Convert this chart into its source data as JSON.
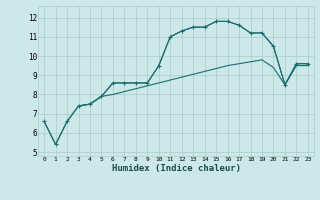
{
  "xlabel": "Humidex (Indice chaleur)",
  "background_color": "#cce8e8",
  "grid_color": "#aacccc",
  "line_color": "#1a6e6e",
  "xlim": [
    -0.5,
    23.5
  ],
  "ylim": [
    4.8,
    12.6
  ],
  "xticks": [
    0,
    1,
    2,
    3,
    4,
    5,
    6,
    7,
    8,
    9,
    10,
    11,
    12,
    13,
    14,
    15,
    16,
    17,
    18,
    19,
    20,
    21,
    22,
    23
  ],
  "yticks": [
    5,
    6,
    7,
    8,
    9,
    10,
    11,
    12
  ],
  "line1_x": [
    0,
    1,
    2,
    3,
    4,
    5,
    6,
    7,
    8,
    9,
    10,
    11,
    12,
    13,
    14,
    15,
    16,
    17,
    18,
    19,
    20,
    21,
    22,
    23
  ],
  "line1_y": [
    6.6,
    5.4,
    6.6,
    7.4,
    7.5,
    7.9,
    8.6,
    8.6,
    8.6,
    8.6,
    9.5,
    11.0,
    11.3,
    11.5,
    11.5,
    11.8,
    11.8,
    11.6,
    11.2,
    11.2,
    10.5,
    8.5,
    9.6,
    9.6
  ],
  "line2_x": [
    0,
    1,
    2,
    3,
    4,
    5,
    6,
    7,
    8,
    9,
    10,
    11,
    12,
    13,
    14,
    15,
    16,
    17,
    18,
    19,
    20,
    21,
    22,
    23
  ],
  "line2_y": [
    6.6,
    5.4,
    6.6,
    7.4,
    7.5,
    7.9,
    8.0,
    8.15,
    8.3,
    8.45,
    8.6,
    8.75,
    8.9,
    9.05,
    9.2,
    9.35,
    9.5,
    9.6,
    9.7,
    9.8,
    9.4,
    8.5,
    9.5,
    9.5
  ],
  "line3_x": [
    3,
    4,
    5,
    6,
    7,
    8,
    9,
    10,
    11,
    12,
    13,
    14,
    15,
    16,
    17,
    18,
    19,
    20,
    21,
    22,
    23
  ],
  "line3_y": [
    7.4,
    7.5,
    7.9,
    8.6,
    8.6,
    8.6,
    8.6,
    9.5,
    11.0,
    11.3,
    11.5,
    11.5,
    11.8,
    11.8,
    11.6,
    11.2,
    11.2,
    10.5,
    8.5,
    9.6,
    9.6
  ]
}
